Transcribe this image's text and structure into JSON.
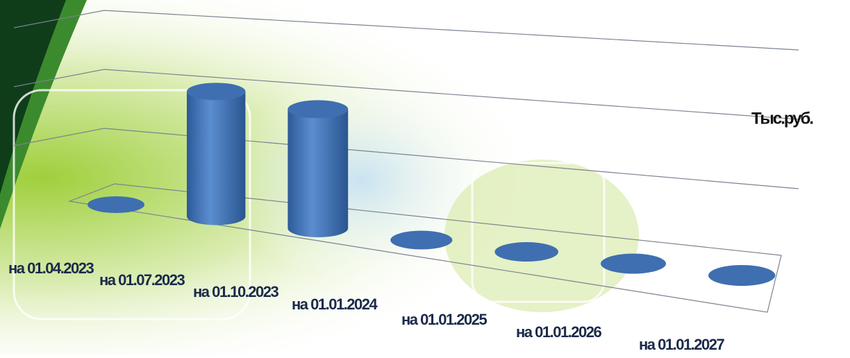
{
  "chart_data": {
    "type": "cylinder",
    "unit_label": "Тыс.руб.",
    "categories": [
      "на 01.04.2023",
      "на 01.07.2023",
      "на 01.10.2023",
      "на 01.01.2024",
      "на 01.01.2025",
      "на 01.01.2026",
      "на 01.01.2027"
    ],
    "values": [
      0,
      2.1,
      2.0,
      0,
      0,
      0,
      0
    ],
    "color": "#3f6fb0",
    "ylim": [
      0,
      3
    ]
  }
}
